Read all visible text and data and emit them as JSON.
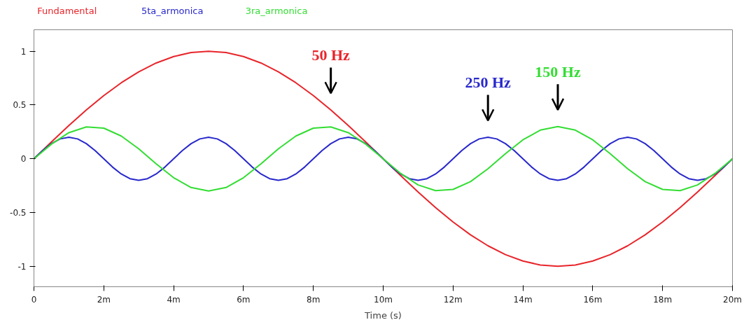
{
  "chart_data": {
    "type": "line",
    "xlabel": "Time (s)",
    "legend": "top left",
    "grid": false,
    "marker": "none",
    "line_style": "solid",
    "xlim": [
      0,
      20
    ],
    "ylim": [
      -1.19,
      1.2
    ],
    "xticks": [
      0,
      {
        "value": 2,
        "label": "2m"
      },
      {
        "value": 4,
        "label": "4m"
      },
      {
        "value": 6,
        "label": "6m"
      },
      {
        "value": 8,
        "label": "8m"
      },
      {
        "value": 10,
        "label": "10m"
      },
      {
        "value": 12,
        "label": "12m"
      },
      {
        "value": 14,
        "label": "14m"
      },
      {
        "value": 16,
        "label": "16m"
      },
      {
        "value": 18,
        "label": "18m"
      },
      {
        "value": 20,
        "label": "20m"
      }
    ],
    "yticks": [
      -1,
      -0.5,
      0,
      0.5,
      1
    ],
    "annotations": [
      {
        "text": "50 Hz",
        "x": 8.5,
        "y": 0.454
      },
      {
        "text": "250 Hz",
        "x": 13,
        "y": 0.2
      },
      {
        "text": "150 Hz",
        "x": 15,
        "y": 0.3
      }
    ],
    "series": [
      {
        "name": "Fundamental",
        "color": "#e8252b",
        "x": [
          0,
          0.5,
          1,
          1.5,
          2,
          2.5,
          3,
          3.5,
          4,
          4.5,
          5,
          5.5,
          6,
          6.5,
          7,
          7.5,
          8,
          8.5,
          9,
          9.5,
          10,
          10.5,
          11,
          11.5,
          12,
          12.5,
          13,
          13.5,
          14,
          14.5,
          15,
          15.5,
          16,
          16.5,
          17,
          17.5,
          18,
          18.5,
          19,
          19.5,
          20
        ],
        "values": [
          0,
          0.156,
          0.309,
          0.454,
          0.588,
          0.707,
          0.809,
          0.891,
          0.951,
          0.988,
          1,
          0.988,
          0.951,
          0.891,
          0.809,
          0.707,
          0.588,
          0.454,
          0.309,
          0.156,
          0,
          -0.156,
          -0.309,
          -0.454,
          -0.588,
          -0.707,
          -0.809,
          -0.891,
          -0.951,
          -0.988,
          -1,
          -0.988,
          -0.951,
          -0.891,
          -0.809,
          -0.707,
          -0.588,
          -0.454,
          -0.309,
          -0.156,
          0
        ]
      },
      {
        "name": "5ta_armonica",
        "color": "#2828cc",
        "x": [
          0,
          0.25,
          0.5,
          0.75,
          1,
          1.25,
          1.5,
          1.75,
          2,
          2.25,
          2.5,
          2.75,
          3,
          3.25,
          3.5,
          3.75,
          4,
          4.25,
          4.5,
          4.75,
          5,
          5.25,
          5.5,
          5.75,
          6,
          6.25,
          6.5,
          6.75,
          7,
          7.25,
          7.5,
          7.75,
          8,
          8.25,
          8.5,
          8.75,
          9,
          9.25,
          9.5,
          9.75,
          10,
          10.25,
          10.5,
          10.75,
          11,
          11.25,
          11.5,
          11.75,
          12,
          12.25,
          12.5,
          12.75,
          13,
          13.25,
          13.5,
          13.75,
          14,
          14.25,
          14.5,
          14.75,
          15,
          15.25,
          15.5,
          15.75,
          16,
          16.25,
          16.5,
          16.75,
          17,
          17.25,
          17.5,
          17.75,
          18,
          18.25,
          18.5,
          18.75,
          19,
          19.25,
          19.5,
          19.75,
          20
        ],
        "values": [
          0,
          0.077,
          0.141,
          0.185,
          0.2,
          0.185,
          0.141,
          0.077,
          0,
          -0.077,
          -0.141,
          -0.185,
          -0.2,
          -0.185,
          -0.141,
          -0.077,
          0,
          0.077,
          0.141,
          0.185,
          0.2,
          0.185,
          0.141,
          0.077,
          0,
          -0.077,
          -0.141,
          -0.185,
          -0.2,
          -0.185,
          -0.141,
          -0.077,
          0,
          0.077,
          0.141,
          0.185,
          0.2,
          0.185,
          0.141,
          0.077,
          0,
          -0.077,
          -0.141,
          -0.185,
          -0.2,
          -0.185,
          -0.141,
          -0.077,
          0,
          0.077,
          0.141,
          0.185,
          0.2,
          0.185,
          0.141,
          0.077,
          0,
          -0.077,
          -0.141,
          -0.185,
          -0.2,
          -0.185,
          -0.141,
          -0.077,
          0,
          0.077,
          0.141,
          0.185,
          0.2,
          0.185,
          0.141,
          0.077,
          0,
          -0.077,
          -0.141,
          -0.185,
          -0.2,
          -0.185,
          -0.141,
          -0.077,
          0
        ]
      },
      {
        "name": "3ra_armonica",
        "color": "#33dd33",
        "x": [
          0,
          0.5,
          1,
          1.5,
          2,
          2.5,
          3,
          3.5,
          4,
          4.5,
          5,
          5.5,
          6,
          6.5,
          7,
          7.5,
          8,
          8.5,
          9,
          9.5,
          10,
          10.5,
          11,
          11.5,
          12,
          12.5,
          13,
          13.5,
          14,
          14.5,
          15,
          15.5,
          16,
          16.5,
          17,
          17.5,
          18,
          18.5,
          19,
          19.5,
          20
        ],
        "values": [
          0,
          0.136,
          0.243,
          0.296,
          0.285,
          0.212,
          0.093,
          -0.047,
          -0.176,
          -0.267,
          -0.3,
          -0.267,
          -0.176,
          -0.047,
          0.093,
          0.212,
          0.285,
          0.296,
          0.243,
          0.136,
          0,
          -0.136,
          -0.243,
          -0.296,
          -0.285,
          -0.212,
          -0.093,
          0.047,
          0.176,
          0.267,
          0.3,
          0.267,
          0.176,
          0.047,
          -0.093,
          -0.212,
          -0.285,
          -0.296,
          -0.243,
          -0.136,
          0
        ]
      }
    ]
  }
}
